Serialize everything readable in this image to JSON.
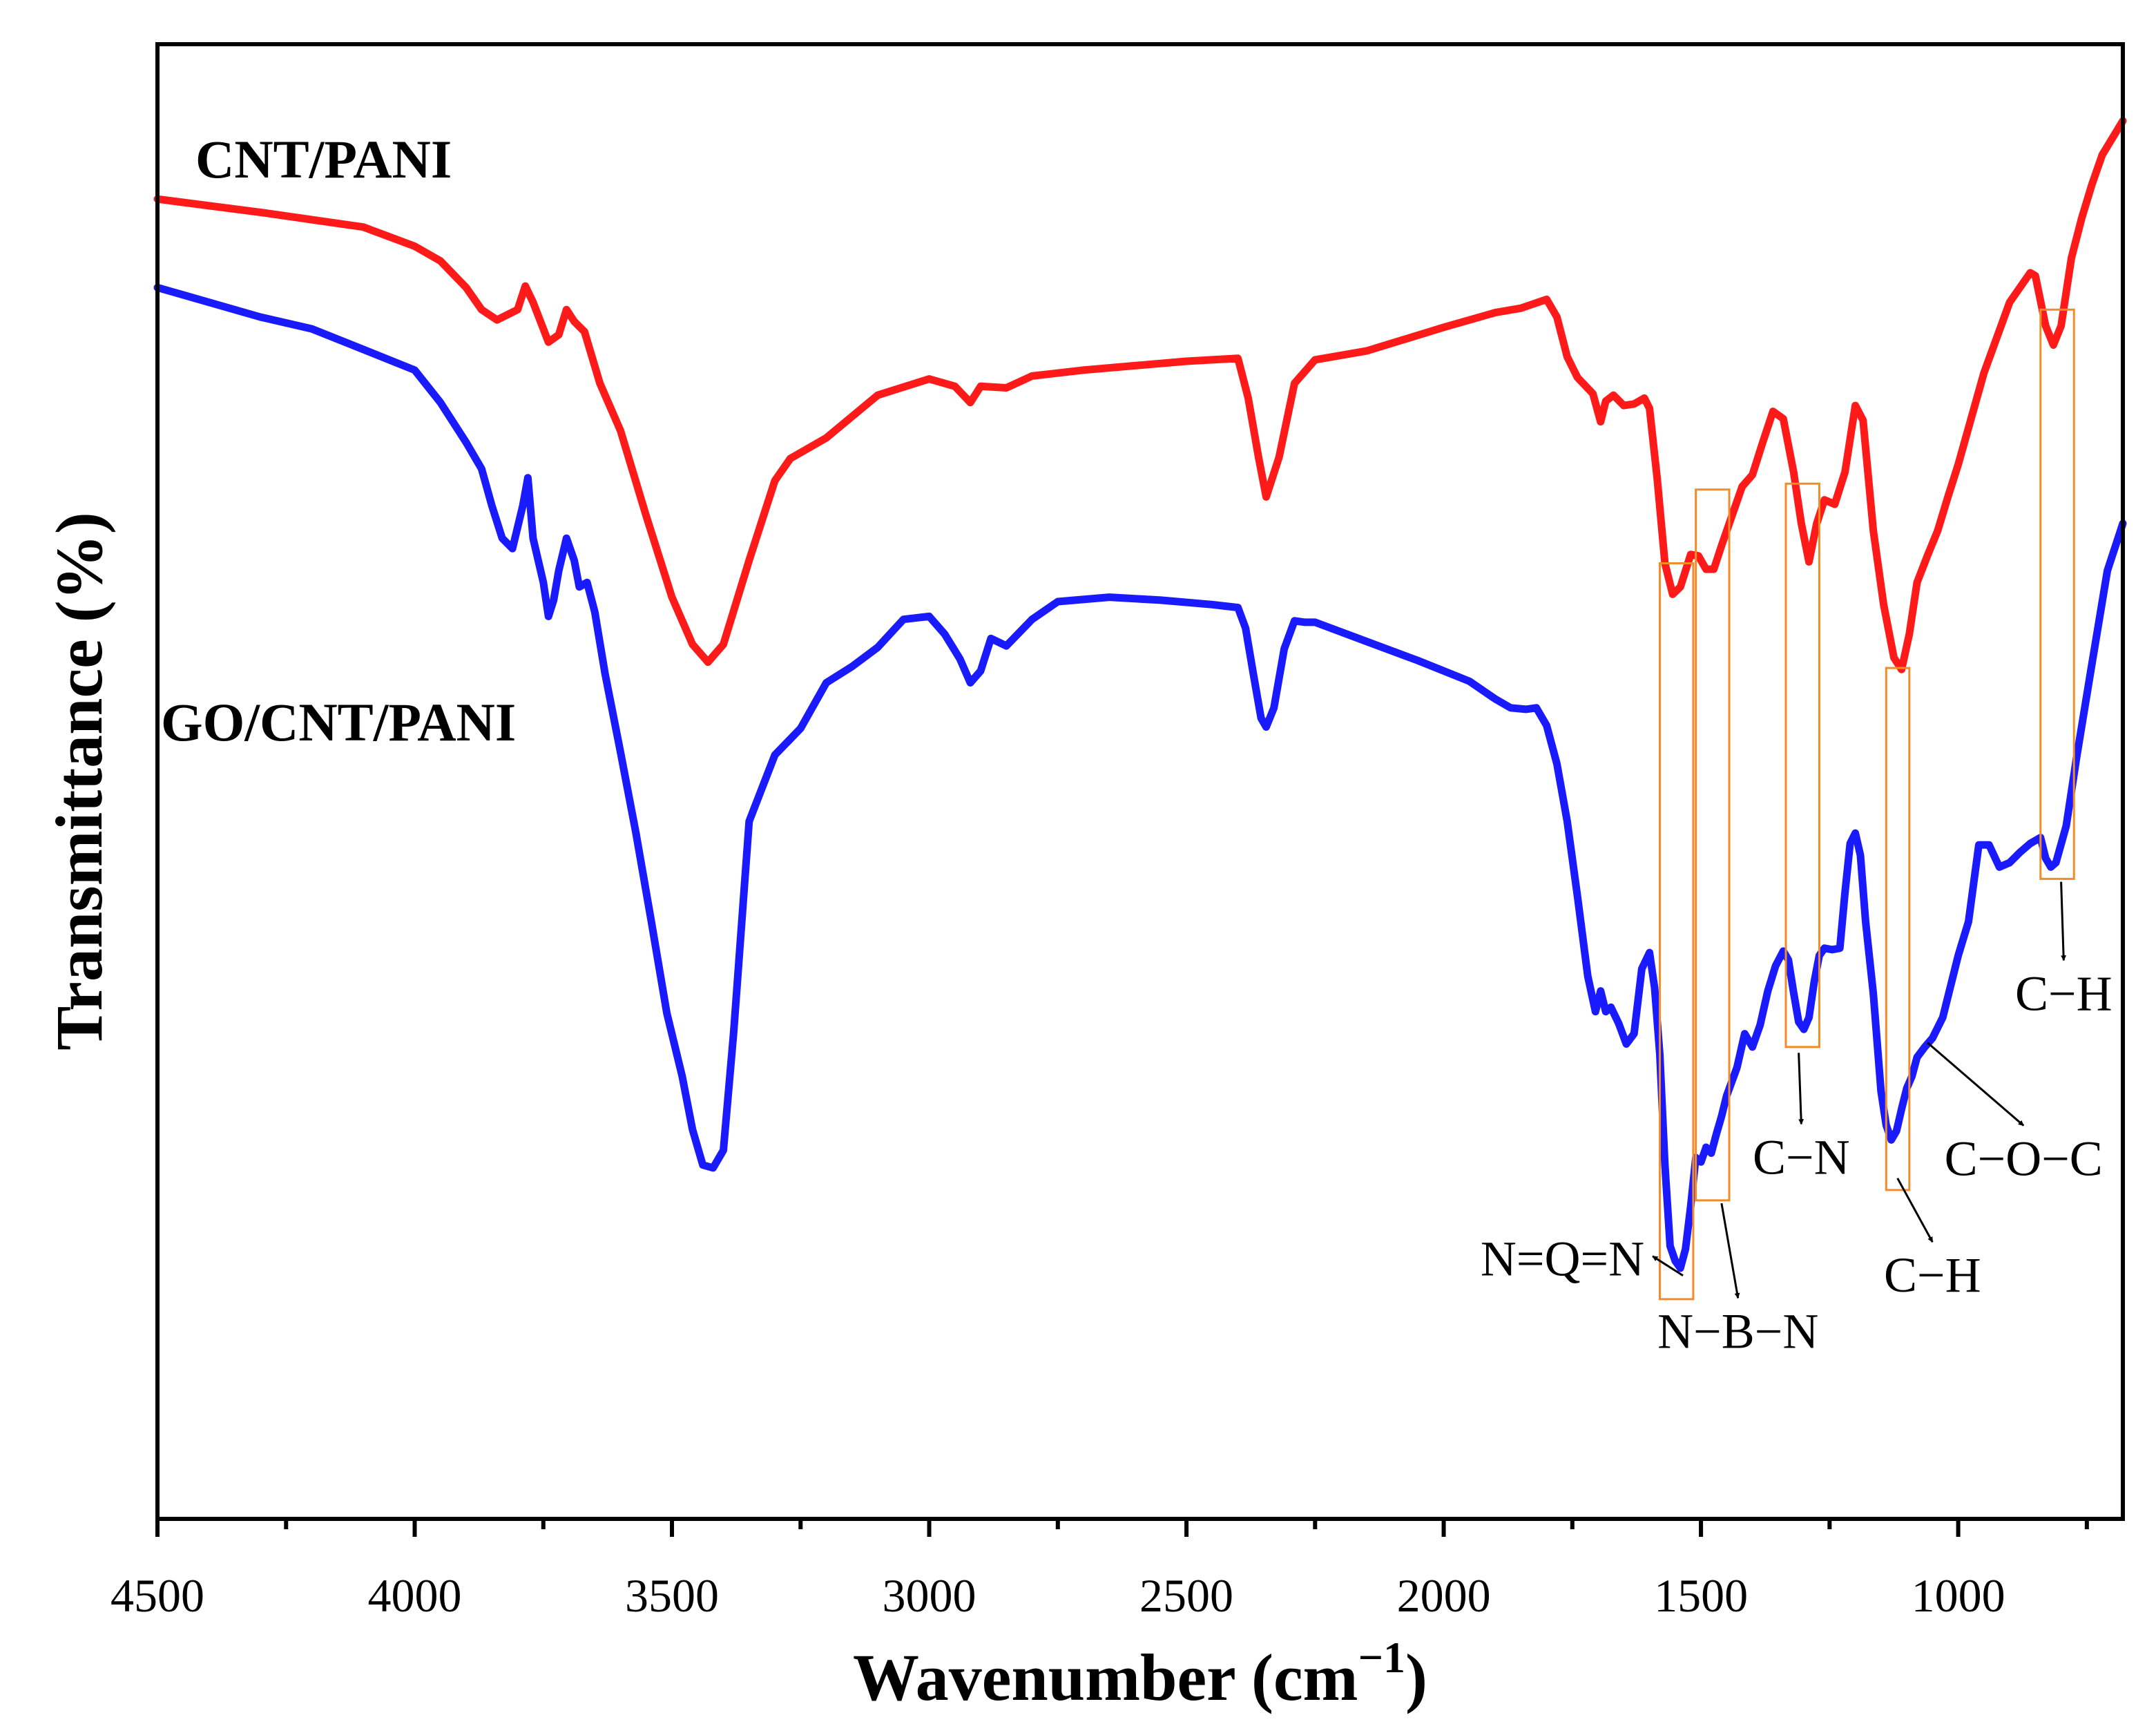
{
  "chart_data": {
    "type": "line",
    "title": "",
    "xlabel": "Wavenumber (cm",
    "xlabel_sup": "−1",
    "xlabel_close": ")",
    "ylabel": "Transmittance (%)",
    "xlim": [
      4500,
      680
    ],
    "ylim": [
      0,
      100
    ],
    "x_ticks": [
      4500,
      4000,
      3500,
      3000,
      2500,
      2000,
      1500,
      1000
    ],
    "x_tick_labels": [
      "4500",
      "4000",
      "3500",
      "3000",
      "2500",
      "2000",
      "1500",
      "1000"
    ],
    "x_minor_ticks": [
      4250,
      3750,
      3250,
      2750,
      2250,
      1750,
      1250,
      750
    ],
    "y_ticks": [],
    "grid": false,
    "legend": "none",
    "series": [
      {
        "name": "CNT/PANI",
        "color": "#ff1a1a",
        "x": [
          4500,
          4300,
          4100,
          4000,
          3950,
          3900,
          3870,
          3840,
          3800,
          3785,
          3770,
          3740,
          3720,
          3705,
          3690,
          3670,
          3640,
          3600,
          3550,
          3500,
          3460,
          3430,
          3400,
          3350,
          3300,
          3270,
          3200,
          3100,
          3000,
          2950,
          2920,
          2900,
          2850,
          2800,
          2700,
          2600,
          2500,
          2450,
          2400,
          2380,
          2360,
          2345,
          2320,
          2290,
          2250,
          2150,
          2000,
          1900,
          1850,
          1800,
          1780,
          1760,
          1740,
          1710,
          1695,
          1685,
          1670,
          1650,
          1630,
          1610,
          1600,
          1585,
          1570,
          1555,
          1540,
          1520,
          1505,
          1490,
          1475,
          1460,
          1440,
          1420,
          1400,
          1380,
          1360,
          1340,
          1320,
          1305,
          1290,
          1275,
          1260,
          1240,
          1220,
          1200,
          1185,
          1165,
          1145,
          1125,
          1110,
          1095,
          1080,
          1060,
          1040,
          1020,
          1000,
          950,
          900,
          860,
          850,
          830,
          815,
          800,
          780,
          760,
          740,
          720,
          680
        ],
        "values": [
          89.5,
          88.6,
          87.6,
          86.3,
          85.3,
          83.5,
          82,
          81.3,
          82,
          83.6,
          82.5,
          79.8,
          80.3,
          82,
          81.2,
          80.5,
          77,
          73.8,
          68,
          62.5,
          59.3,
          58.1,
          59.3,
          65,
          70.4,
          71.9,
          73.3,
          76.2,
          77.3,
          76.8,
          75.7,
          76.8,
          76.7,
          77.5,
          77.9,
          78.2,
          78.5,
          78.6,
          78.7,
          76,
          72,
          69.3,
          72,
          77,
          78.6,
          79.2,
          80.8,
          81.8,
          82.1,
          82.7,
          81.5,
          78.8,
          77.4,
          76.3,
          74.4,
          75.8,
          76.2,
          75.5,
          75.6,
          76,
          75.3,
          70.5,
          64.8,
          62.7,
          63.2,
          65.4,
          65.3,
          64.4,
          64.4,
          66,
          68,
          70,
          70.8,
          73,
          75.1,
          74.6,
          71,
          67.5,
          64.9,
          67.5,
          69.1,
          68.8,
          71,
          75.5,
          74.5,
          67,
          62,
          58.4,
          57.6,
          60,
          63.5,
          65.3,
          67,
          69.3,
          71.5,
          77.7,
          82.5,
          84.5,
          84.3,
          80.9,
          79.6,
          80.9,
          85.5,
          88.2,
          90.5,
          92.5,
          94.8
        ]
      },
      {
        "name": "GO/CNT/PANI",
        "color": "#1a1aff",
        "x": [
          4500,
          4300,
          4200,
          4100,
          4000,
          3950,
          3900,
          3870,
          3850,
          3830,
          3810,
          3790,
          3780,
          3770,
          3750,
          3740,
          3730,
          3720,
          3705,
          3690,
          3680,
          3665,
          3650,
          3630,
          3600,
          3570,
          3540,
          3510,
          3480,
          3460,
          3440,
          3420,
          3400,
          3380,
          3350,
          3300,
          3250,
          3200,
          3150,
          3100,
          3050,
          3000,
          2970,
          2940,
          2920,
          2900,
          2880,
          2850,
          2800,
          2750,
          2650,
          2550,
          2450,
          2400,
          2385,
          2370,
          2355,
          2345,
          2330,
          2310,
          2290,
          2270,
          2250,
          2150,
          2050,
          1950,
          1900,
          1870,
          1840,
          1820,
          1800,
          1780,
          1760,
          1740,
          1720,
          1705,
          1695,
          1685,
          1675,
          1660,
          1645,
          1630,
          1615,
          1600,
          1590,
          1580,
          1570,
          1560,
          1550,
          1540,
          1530,
          1520,
          1510,
          1500,
          1490,
          1480,
          1470,
          1460,
          1450,
          1430,
          1415,
          1400,
          1385,
          1370,
          1355,
          1340,
          1330,
          1320,
          1310,
          1300,
          1290,
          1280,
          1270,
          1260,
          1245,
          1230,
          1220,
          1210,
          1200,
          1190,
          1180,
          1165,
          1150,
          1140,
          1130,
          1120,
          1110,
          1100,
          1090,
          1080,
          1065,
          1050,
          1030,
          1000,
          980,
          960,
          940,
          920,
          900,
          880,
          860,
          840,
          830,
          820,
          810,
          790,
          770,
          740,
          710,
          680
        ],
        "values": [
          83.5,
          81.5,
          80.7,
          79.3,
          77.9,
          75.7,
          73,
          71.2,
          68.7,
          66.5,
          65.8,
          68.7,
          70.6,
          66.5,
          63.5,
          61.2,
          62.3,
          64.3,
          66.5,
          65,
          63.2,
          63.5,
          61.5,
          57.3,
          52,
          46.5,
          40.5,
          34.3,
          30,
          26.4,
          24,
          23.8,
          25,
          33,
          47.3,
          51.8,
          53.6,
          56.7,
          57.8,
          59.1,
          61,
          61.2,
          60,
          58.3,
          56.7,
          57.5,
          59.7,
          59.2,
          61,
          62.2,
          62.5,
          62.3,
          62,
          61.8,
          60.4,
          57.3,
          54.3,
          53.7,
          55,
          59,
          60.9,
          60.8,
          60.8,
          59.5,
          58.2,
          56.8,
          55.6,
          55,
          54.9,
          55,
          53.8,
          51.2,
          47.3,
          42.2,
          36.8,
          34.4,
          35.8,
          34.4,
          34.7,
          33.6,
          32.2,
          32.9,
          37.3,
          38.4,
          36,
          31.5,
          24,
          18.5,
          17.5,
          17,
          18.3,
          21.2,
          24.5,
          24.2,
          25.2,
          24.8,
          26.1,
          27.3,
          28.7,
          30.6,
          32.9,
          32,
          33.5,
          35.8,
          37.5,
          38.5,
          37.9,
          35.7,
          33.7,
          33.2,
          34,
          36.4,
          38.2,
          38.7,
          38.6,
          38.7,
          42.5,
          45.8,
          46.5,
          45,
          40.5,
          35.6,
          29,
          26.7,
          25.7,
          26.3,
          27.8,
          29.2,
          30,
          31.3,
          32,
          32.6,
          34,
          38.2,
          40.5,
          45.7,
          45.7,
          44.2,
          44.5,
          45.2,
          45.8,
          46.2,
          44.8,
          44.2,
          44.5,
          47,
          51.6,
          58,
          64.3,
          67.5
        ]
      }
    ],
    "series_labels": [
      "CNT/PANI",
      "GO/CNT/PANI"
    ],
    "annotations": [
      {
        "label": "N=Q=N",
        "band_cm": [
          1580,
          1515
        ],
        "band_range": [
          14.9,
          64.8
        ],
        "point_cm": 1535,
        "point_value": 16.5,
        "text_cm": 1610,
        "text_value": 16.5,
        "anchor": "end"
      },
      {
        "label": "N−B−N",
        "band_cm": [
          1510,
          1445
        ],
        "band_range": [
          21.6,
          69.8
        ],
        "point_cm": 1460,
        "point_value": 21.4,
        "text_cm": 1428,
        "text_value": 11.6,
        "anchor": "middle"
      },
      {
        "label": "C−N",
        "band_cm": [
          1335,
          1270
        ],
        "band_range": [
          32,
          70.2
        ],
        "point_cm": 1310,
        "point_value": 31.6,
        "text_cm": 1305,
        "text_value": 23.4,
        "anchor": "middle"
      },
      {
        "label": "C−H",
        "band_cm": [
          1140,
          1095
        ],
        "band_range": [
          22.3,
          57.7
        ],
        "point_cm": 1118,
        "point_value": 23.1,
        "text_cm": 1050,
        "text_value": 15.4,
        "anchor": "middle"
      },
      {
        "label": "C−O−C",
        "band_cm": null,
        "band_range": null,
        "point_cm": 1060,
        "point_value": 32.3,
        "text_cm": 873,
        "text_value": 23.3,
        "anchor": "middle"
      },
      {
        "label": "C−H",
        "band_cm": [
          840,
          775
        ],
        "band_range": [
          43.4,
          82
        ],
        "point_cm": 800,
        "point_value": 43.2,
        "text_cm": 795,
        "text_value": 34.5,
        "anchor": "middle"
      }
    ]
  }
}
